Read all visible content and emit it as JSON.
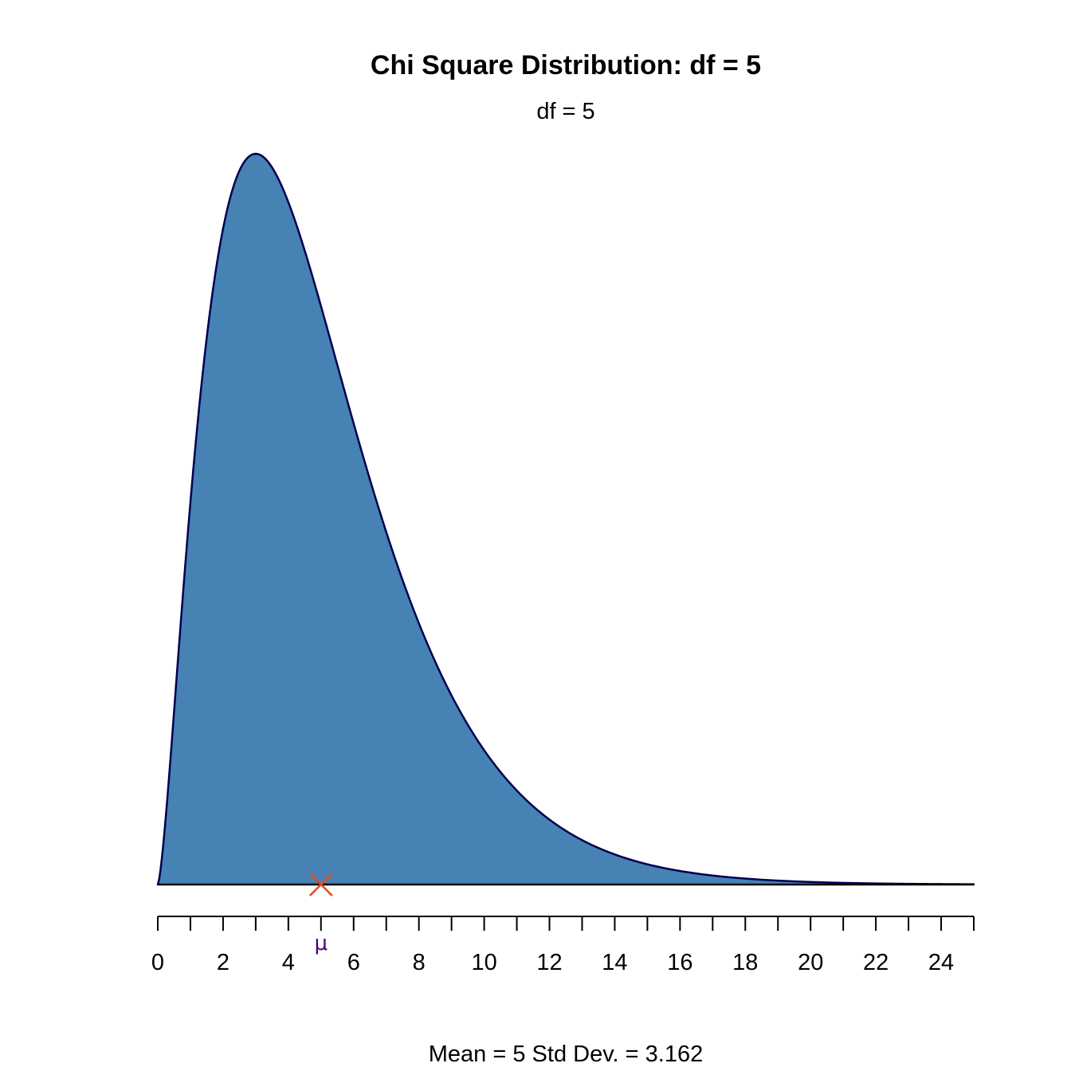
{
  "chart_data": {
    "type": "area",
    "title": "Chi Square Distribution: df = 5",
    "subtitle": "df = 5",
    "distribution": "chi-square",
    "df": 5,
    "xlim": [
      0,
      25
    ],
    "major_ticks": [
      0,
      2,
      4,
      6,
      8,
      10,
      12,
      14,
      16,
      18,
      20,
      22,
      24
    ],
    "minor_tick_step": 1,
    "grid": false,
    "mean_marker": {
      "x": 5,
      "label": "μ",
      "marker_color": "#E8491D",
      "label_color": "#4B0082"
    },
    "footer": "Mean = 5  Std Dev. = 3.162",
    "fill_color": "#4682B4",
    "line_color": "#000050"
  }
}
